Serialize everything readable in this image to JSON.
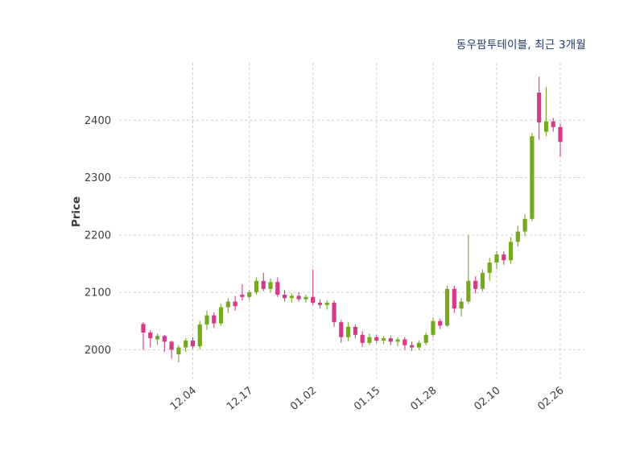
{
  "colors": {
    "up": "#76a822",
    "down": "#d53a87",
    "title": "#1b3a6b",
    "grid": "#cccccc",
    "tick": "#3d3d3d",
    "background": "#ffffff"
  },
  "chart_data": {
    "type": "candlestick",
    "title": "동우팜투테이블, 최근 3개월",
    "ylabel": "Price",
    "ylim": [
      1950,
      2500
    ],
    "yticks": [
      2000,
      2100,
      2200,
      2300,
      2400
    ],
    "xticks": [
      {
        "index": 7,
        "label": "12.04"
      },
      {
        "index": 15,
        "label": "12.17"
      },
      {
        "index": 24,
        "label": "01.02"
      },
      {
        "index": 33,
        "label": "01.15"
      },
      {
        "index": 41,
        "label": "01.28"
      },
      {
        "index": 50,
        "label": "02.10"
      },
      {
        "index": 59,
        "label": "02.26"
      }
    ],
    "ohlc": [
      [
        2045,
        2048,
        2000,
        2030
      ],
      [
        2030,
        2034,
        2004,
        2020
      ],
      [
        2018,
        2028,
        2008,
        2024
      ],
      [
        2024,
        2026,
        1996,
        2014
      ],
      [
        2014,
        2016,
        1984,
        2000
      ],
      [
        1992,
        2008,
        1978,
        2004
      ],
      [
        2004,
        2020,
        1996,
        2016
      ],
      [
        2016,
        2022,
        2002,
        2006
      ],
      [
        2006,
        2050,
        2000,
        2044
      ],
      [
        2044,
        2068,
        2035,
        2060
      ],
      [
        2060,
        2065,
        2038,
        2046
      ],
      [
        2046,
        2080,
        2042,
        2074
      ],
      [
        2074,
        2090,
        2064,
        2084
      ],
      [
        2084,
        2094,
        2068,
        2076
      ],
      [
        2096,
        2114,
        2086,
        2092
      ],
      [
        2092,
        2104,
        2088,
        2100
      ],
      [
        2100,
        2126,
        2096,
        2120
      ],
      [
        2120,
        2134,
        2102,
        2106
      ],
      [
        2106,
        2124,
        2100,
        2118
      ],
      [
        2118,
        2126,
        2092,
        2096
      ],
      [
        2096,
        2104,
        2084,
        2090
      ],
      [
        2090,
        2098,
        2082,
        2094
      ],
      [
        2094,
        2100,
        2084,
        2088
      ],
      [
        2088,
        2096,
        2082,
        2092
      ],
      [
        2092,
        2140,
        2078,
        2082
      ],
      [
        2082,
        2088,
        2072,
        2078
      ],
      [
        2078,
        2086,
        2070,
        2082
      ],
      [
        2082,
        2086,
        2040,
        2048
      ],
      [
        2048,
        2052,
        2012,
        2022
      ],
      [
        2022,
        2048,
        2015,
        2040
      ],
      [
        2040,
        2044,
        2020,
        2026
      ],
      [
        2026,
        2032,
        2005,
        2012
      ],
      [
        2012,
        2028,
        2008,
        2022
      ],
      [
        2022,
        2026,
        2012,
        2016
      ],
      [
        2016,
        2024,
        2010,
        2020
      ],
      [
        2020,
        2024,
        2008,
        2014
      ],
      [
        2014,
        2022,
        2006,
        2018
      ],
      [
        2018,
        2022,
        2000,
        2008
      ],
      [
        2008,
        2014,
        1998,
        2004
      ],
      [
        2004,
        2016,
        2000,
        2012
      ],
      [
        2012,
        2030,
        2008,
        2026
      ],
      [
        2026,
        2056,
        2022,
        2050
      ],
      [
        2050,
        2054,
        2036,
        2042
      ],
      [
        2042,
        2112,
        2040,
        2106
      ],
      [
        2106,
        2112,
        2064,
        2072
      ],
      [
        2072,
        2090,
        2058,
        2084
      ],
      [
        2084,
        2200,
        2080,
        2120
      ],
      [
        2120,
        2128,
        2098,
        2106
      ],
      [
        2106,
        2140,
        2102,
        2134
      ],
      [
        2134,
        2160,
        2120,
        2152
      ],
      [
        2152,
        2172,
        2140,
        2166
      ],
      [
        2166,
        2172,
        2148,
        2156
      ],
      [
        2156,
        2196,
        2150,
        2188
      ],
      [
        2188,
        2216,
        2180,
        2206
      ],
      [
        2206,
        2236,
        2198,
        2228
      ],
      [
        2228,
        2378,
        2224,
        2372
      ],
      [
        2448,
        2476,
        2366,
        2396
      ],
      [
        2380,
        2458,
        2372,
        2398
      ],
      [
        2398,
        2404,
        2380,
        2388
      ],
      [
        2388,
        2394,
        2336,
        2362
      ]
    ]
  }
}
